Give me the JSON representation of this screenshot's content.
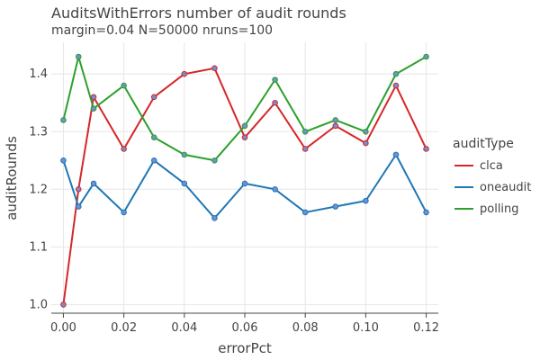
{
  "chart_data": {
    "type": "line",
    "title": "AuditsWithErrors number of audit rounds",
    "subtitle": "margin=0.04 N=50000 nruns=100",
    "xlabel": "errorPct",
    "ylabel": "auditRounds",
    "xlim": [
      -0.004,
      0.124
    ],
    "ylim": [
      0.985,
      1.455
    ],
    "x_ticks": [
      0.0,
      0.02,
      0.04,
      0.06,
      0.08,
      0.1,
      0.12
    ],
    "x_tick_labels": [
      "0.00",
      "0.02",
      "0.04",
      "0.06",
      "0.08",
      "0.10",
      "0.12"
    ],
    "y_ticks": [
      1.0,
      1.1,
      1.2,
      1.3,
      1.4
    ],
    "y_tick_labels": [
      "1.0",
      "1.1",
      "1.2",
      "1.3",
      "1.4"
    ],
    "grid": true,
    "legend_title": "auditType",
    "legend_position": "right",
    "marker_color": "#6f8fd4",
    "x": [
      0.0,
      0.005,
      0.01,
      0.02,
      0.03,
      0.04,
      0.05,
      0.06,
      0.07,
      0.08,
      0.09,
      0.1,
      0.11,
      0.12
    ],
    "series": [
      {
        "name": "clca",
        "color": "#d62728",
        "values": [
          1.0,
          1.2,
          1.36,
          1.27,
          1.36,
          1.4,
          1.41,
          1.29,
          1.35,
          1.27,
          1.31,
          1.28,
          1.38,
          1.27
        ]
      },
      {
        "name": "oneaudit",
        "color": "#1f77b4",
        "values": [
          1.25,
          1.17,
          1.21,
          1.16,
          1.25,
          1.21,
          1.15,
          1.21,
          1.2,
          1.16,
          1.17,
          1.18,
          1.26,
          1.16
        ]
      },
      {
        "name": "polling",
        "color": "#2ca02c",
        "values": [
          1.32,
          1.43,
          1.34,
          1.38,
          1.29,
          1.26,
          1.25,
          1.31,
          1.39,
          1.3,
          1.32,
          1.3,
          1.4,
          1.43
        ]
      }
    ]
  }
}
